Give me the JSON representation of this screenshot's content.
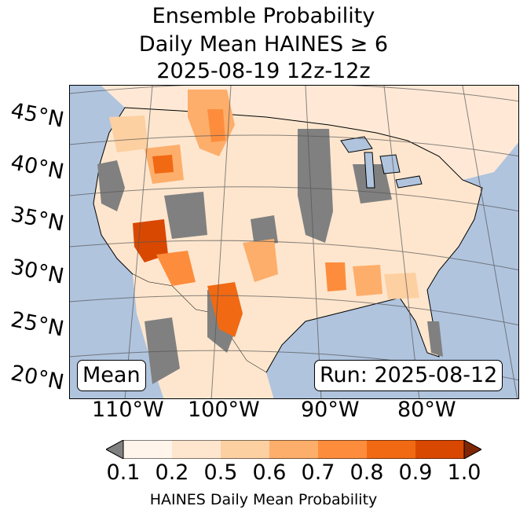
{
  "title": {
    "line1": "Ensemble Probability",
    "line2": "Daily Mean HAINES ≥ 6",
    "line3": "2025-08-19 12z-12z"
  },
  "map": {
    "latitude_labels": [
      "45°N",
      "40°N",
      "35°N",
      "30°N",
      "25°N",
      "20°N"
    ],
    "longitude_labels": [
      "110°W",
      "100°W",
      "90°W",
      "80°W"
    ],
    "corner_left": "Mean",
    "corner_right": "Run: 2025-08-12",
    "colors": {
      "ocean": "#b0c4de",
      "missing": "#808080",
      "below_min": "#ffffff"
    }
  },
  "colorbar": {
    "label": "HAINES Daily Mean Probability",
    "ticks": [
      "0.1",
      "0.2",
      "0.5",
      "0.6",
      "0.7",
      "0.8",
      "0.9",
      "1.0"
    ],
    "under_color": "#808080",
    "over_color": "#7f2704",
    "bins": [
      {
        "from": "0.1",
        "to": "0.2",
        "color": "#fff5eb"
      },
      {
        "from": "0.2",
        "to": "0.5",
        "color": "#fee6ce"
      },
      {
        "from": "0.5",
        "to": "0.6",
        "color": "#fdd0a2"
      },
      {
        "from": "0.6",
        "to": "0.7",
        "color": "#fdae6b"
      },
      {
        "from": "0.7",
        "to": "0.8",
        "color": "#fd8d3c"
      },
      {
        "from": "0.8",
        "to": "0.9",
        "color": "#f16913"
      },
      {
        "from": "0.9",
        "to": "1.0",
        "color": "#d94801"
      }
    ]
  }
}
